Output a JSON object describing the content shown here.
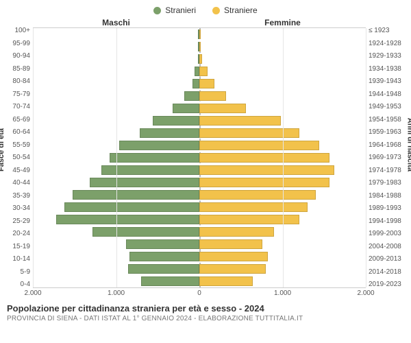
{
  "legend": {
    "male": {
      "label": "Stranieri",
      "color": "#7ca06a"
    },
    "female": {
      "label": "Straniere",
      "color": "#f2c24b"
    }
  },
  "columns": {
    "left_header": "Maschi",
    "right_header": "Femmine"
  },
  "axes": {
    "y_left_title": "Fasce di età",
    "y_right_title": "Anni di nascita",
    "x_ticks": [
      "2.000",
      "1.000",
      "0",
      "1.000",
      "2.000"
    ],
    "x_max": 2000,
    "grid_color": "#e5e5e5",
    "center_dash_color": "#bbbbbb"
  },
  "rows": [
    {
      "age": "100+",
      "birth": "≤ 1923",
      "m": 0,
      "f": 10
    },
    {
      "age": "95-99",
      "birth": "1924-1928",
      "m": 5,
      "f": 15
    },
    {
      "age": "90-94",
      "birth": "1929-1933",
      "m": 15,
      "f": 30
    },
    {
      "age": "85-89",
      "birth": "1934-1938",
      "m": 60,
      "f": 100
    },
    {
      "age": "80-84",
      "birth": "1939-1943",
      "m": 80,
      "f": 180
    },
    {
      "age": "75-79",
      "birth": "1944-1948",
      "m": 180,
      "f": 320
    },
    {
      "age": "70-74",
      "birth": "1949-1953",
      "m": 320,
      "f": 560
    },
    {
      "age": "65-69",
      "birth": "1954-1958",
      "m": 560,
      "f": 980
    },
    {
      "age": "60-64",
      "birth": "1959-1963",
      "m": 720,
      "f": 1200
    },
    {
      "age": "55-59",
      "birth": "1964-1968",
      "m": 960,
      "f": 1440
    },
    {
      "age": "50-54",
      "birth": "1969-1973",
      "m": 1080,
      "f": 1560
    },
    {
      "age": "45-49",
      "birth": "1974-1978",
      "m": 1180,
      "f": 1620
    },
    {
      "age": "40-44",
      "birth": "1979-1983",
      "m": 1320,
      "f": 1560
    },
    {
      "age": "35-39",
      "birth": "1984-1988",
      "m": 1520,
      "f": 1400
    },
    {
      "age": "30-34",
      "birth": "1989-1993",
      "m": 1620,
      "f": 1300
    },
    {
      "age": "25-29",
      "birth": "1994-1998",
      "m": 1720,
      "f": 1200
    },
    {
      "age": "20-24",
      "birth": "1999-2003",
      "m": 1280,
      "f": 900
    },
    {
      "age": "15-19",
      "birth": "2004-2008",
      "m": 880,
      "f": 760
    },
    {
      "age": "10-14",
      "birth": "2009-2013",
      "m": 840,
      "f": 820
    },
    {
      "age": "5-9",
      "birth": "2014-2018",
      "m": 860,
      "f": 800
    },
    {
      "age": "0-4",
      "birth": "2019-2023",
      "m": 700,
      "f": 640
    }
  ],
  "footer": {
    "title": "Popolazione per cittadinanza straniera per età e sesso - 2024",
    "subtitle": "PROVINCIA DI SIENA - Dati ISTAT al 1° gennaio 2024 - Elaborazione TUTTITALIA.IT"
  },
  "style": {
    "bg": "#ffffff",
    "bar_border": "rgba(0,0,0,0.15)",
    "label_fontsize": 10,
    "title_fontsize": 13
  }
}
